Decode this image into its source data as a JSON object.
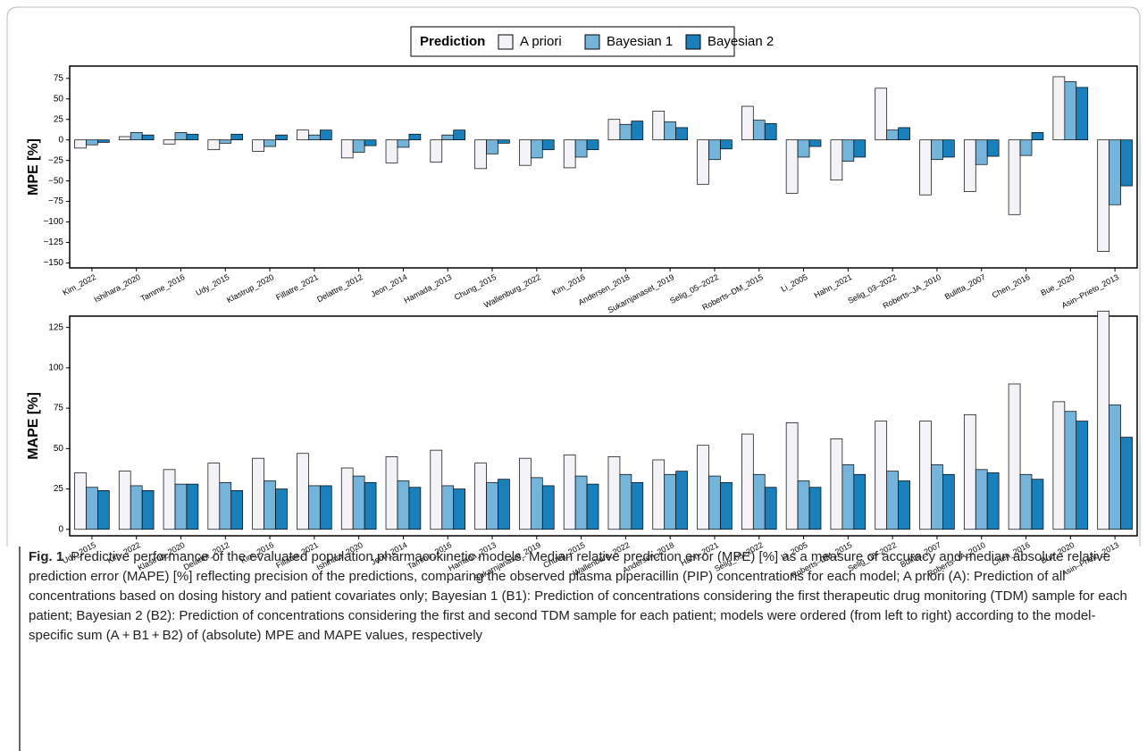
{
  "legend_title": "Prediction",
  "chart_data": [
    {
      "type": "bar",
      "ylabel": "MPE [%]",
      "categories": [
        "Kim_2022",
        "Ishihara_2020",
        "Tamme_2016",
        "Udy_2015",
        "Klastrup_2020",
        "Fillatre_2021",
        "Delattre_2012",
        "Jeon_2014",
        "Hamada_2013",
        "Chung_2015",
        "Wallenburg_2022",
        "Kim_2016",
        "Andersen_2018",
        "Sukarnjanaset_2019",
        "Selig_05–2022",
        "Roberts–DM_2015",
        "Li_2005",
        "Hahn_2021",
        "Selig_03–2022",
        "Roberts–JA_2010",
        "Bulitta_2007",
        "Chen_2016",
        "Bue_2020",
        "Asin–Prieto_2013"
      ],
      "series": [
        {
          "name": "A priori",
          "color": "#f3f3f7",
          "values": [
            -10,
            4,
            -5,
            -12,
            -14,
            12,
            -22,
            -28,
            -27,
            -35,
            -31,
            -34,
            25,
            35,
            -54,
            41,
            -65,
            -49,
            63,
            -67,
            -63,
            -91,
            77,
            -136
          ]
        },
        {
          "name": "Bayesian 1",
          "color": "#74b3da",
          "values": [
            -6,
            9,
            9,
            -4,
            -8,
            6,
            -15,
            -9,
            6,
            -17,
            -22,
            -21,
            19,
            22,
            -24,
            24,
            -21,
            -26,
            12,
            -24,
            -30,
            -19,
            71,
            -79
          ]
        },
        {
          "name": "Bayesian 2",
          "color": "#1a80bb",
          "values": [
            -3,
            6,
            7,
            7,
            6,
            12,
            -7,
            7,
            12,
            -4,
            -12,
            -12,
            23,
            15,
            -11,
            20,
            -8,
            -21,
            15,
            -21,
            -20,
            9,
            64,
            -56
          ]
        }
      ],
      "ylim": [
        -156,
        90
      ],
      "yticks": [
        {
          "value": -150,
          "label": "−150"
        },
        {
          "value": -125,
          "label": "−125"
        },
        {
          "value": -100,
          "label": "−100"
        },
        {
          "value": -75,
          "label": "−75"
        },
        {
          "value": -50,
          "label": "−50"
        },
        {
          "value": -25,
          "label": "−25"
        },
        0,
        25,
        50,
        75
      ]
    },
    {
      "type": "bar",
      "ylabel": "MAPE [%]",
      "categories": [
        "Udy_2015",
        "Kim_2022",
        "Klastrup_2020",
        "Delattre_2012",
        "Kim_2016",
        "Fillatre_2021",
        "Ishihara_2020",
        "Jeon_2014",
        "Tamme_2016",
        "Hamada_2013",
        "Sukarnjanaset_2019",
        "Chung_2015",
        "Wallenburg_2022",
        "Andersen_2018",
        "Hahn_2021",
        "Selig_05–2022",
        "Li_2005",
        "Roberts–DM_2015",
        "Selig_03–2022",
        "Bulitta_2007",
        "Roberts–JA_2010",
        "Chen_2016",
        "Bue_2020",
        "Asin–Prieto_2013"
      ],
      "series": [
        {
          "color": "#f3f3f7",
          "values": [
            35,
            36,
            37,
            41,
            44,
            47,
            38,
            45,
            49,
            41,
            44,
            46,
            45,
            43,
            52,
            59,
            66,
            56,
            67,
            67,
            71,
            90,
            79,
            135
          ]
        },
        {
          "color": "#74b3da",
          "values": [
            26,
            27,
            28,
            29,
            30,
            27,
            33,
            30,
            27,
            29,
            32,
            33,
            34,
            34,
            33,
            34,
            30,
            40,
            36,
            40,
            37,
            34,
            73,
            77
          ]
        },
        {
          "color": "#1a80bb",
          "values": [
            24,
            24,
            28,
            24,
            25,
            27,
            29,
            26,
            25,
            31,
            27,
            28,
            29,
            36,
            29,
            26,
            26,
            34,
            30,
            34,
            35,
            31,
            67,
            57
          ]
        }
      ],
      "ylim": [
        -4,
        132
      ],
      "yticks": [
        0,
        25,
        50,
        75,
        100,
        125
      ]
    }
  ],
  "caption": {
    "label": "Fig. 1",
    "text": "Predictive performance of the evaluated population pharmacokinetic models. Median relative prediction error (MPE) [%] as a measure of accuracy and median absolute relative prediction error (MAPE) [%] reflecting precision of the predictions, comparing the observed plasma piperacillin (PIP) concentrations for each model; A priori (A): Prediction of all concentrations based on dosing history and patient covariates only; Bayesian 1 (B1): Prediction of concentrations considering the first therapeutic drug monitoring (TDM) sample for each patient; Bayesian 2 (B2): Prediction of concentrations considering the first and second TDM sample for each patient; models were ordered (from left to right) according to the model-specific sum (A + B1 + B2) of (absolute) MPE and MAPE values, respectively"
  }
}
